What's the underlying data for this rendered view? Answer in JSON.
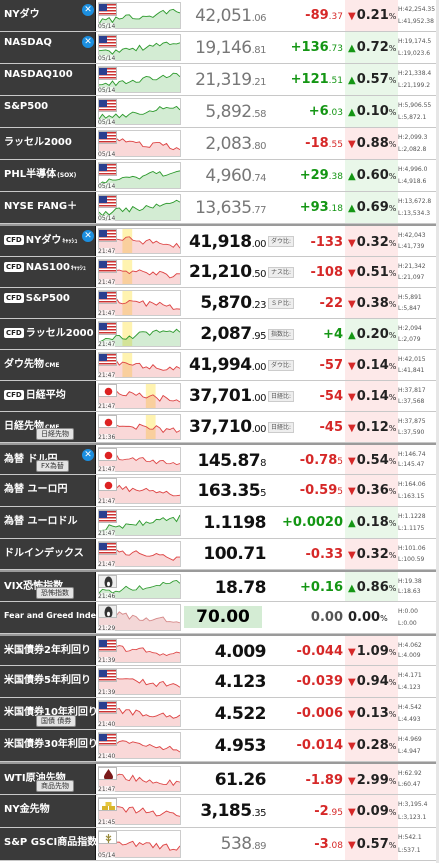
{
  "rows": [
    {
      "name": "NYダウ",
      "cfd": false,
      "x": true,
      "sub": null,
      "icon": "us-flag-icon",
      "ts": "05/14",
      "price_main": "42,051",
      "price_dec": ".06",
      "style": "g",
      "chg_main": "-89",
      "chg_dec": ".37",
      "chg_dir": "dn",
      "pct_main": "0.21",
      "pct_unit": "%",
      "pct_dir": "dn",
      "hi": "H:42,254.35",
      "lo": "L:41,952.38",
      "group": false,
      "chart": "g",
      "label": null
    },
    {
      "name": "NASDAQ",
      "cfd": false,
      "x": true,
      "sub": null,
      "icon": "us-flag-icon",
      "ts": "05/14",
      "price_main": "19,146",
      "price_dec": ".81",
      "style": "g",
      "chg_main": "+136",
      "chg_dec": ".73",
      "chg_dir": "up",
      "pct_main": "0.72",
      "pct_unit": "%",
      "pct_dir": "up",
      "hi": "H:19,174.5",
      "lo": "L:19,023.6",
      "group": false,
      "chart": "g",
      "label": null
    },
    {
      "name": "NASDAQ100",
      "cfd": false,
      "x": false,
      "sub": null,
      "icon": "us-flag-icon",
      "ts": "05/14",
      "price_main": "21,319",
      "price_dec": ".21",
      "style": "g",
      "chg_main": "+121",
      "chg_dec": ".51",
      "chg_dir": "up",
      "pct_main": "0.57",
      "pct_unit": "%",
      "pct_dir": "up",
      "hi": "H:21,338.4",
      "lo": "L:21,199.2",
      "group": false,
      "chart": "g",
      "label": null
    },
    {
      "name": "S&P500",
      "cfd": false,
      "x": false,
      "sub": null,
      "icon": "us-flag-icon",
      "ts": "05/14",
      "price_main": "5,892",
      "price_dec": ".58",
      "style": "g",
      "chg_main": "+6",
      "chg_dec": ".03",
      "chg_dir": "up",
      "pct_main": "0.10",
      "pct_unit": "%",
      "pct_dir": "up",
      "hi": "H:5,906.55",
      "lo": "L:5,872.1",
      "group": false,
      "chart": "g",
      "label": null
    },
    {
      "name": "ラッセル2000",
      "cfd": false,
      "x": false,
      "sub": null,
      "icon": "us-flag-icon",
      "ts": "05/14",
      "price_main": "2,083",
      "price_dec": ".80",
      "style": "g",
      "chg_main": "-18",
      "chg_dec": ".55",
      "chg_dir": "dn",
      "pct_main": "0.88",
      "pct_unit": "%",
      "pct_dir": "dn",
      "hi": "H:2,099.3",
      "lo": "L:2,082.8",
      "group": false,
      "chart": "r",
      "label": null
    },
    {
      "name": "PHL半導体",
      "suffix": "(SOX)",
      "cfd": false,
      "x": false,
      "sub": null,
      "icon": "us-flag-icon",
      "ts": "05/14",
      "price_main": "4,960",
      "price_dec": ".74",
      "style": "g",
      "chg_main": "+29",
      "chg_dec": ".38",
      "chg_dir": "up",
      "pct_main": "0.60",
      "pct_unit": "%",
      "pct_dir": "up",
      "hi": "H:4,996.0",
      "lo": "L:4,918.6",
      "group": false,
      "chart": "g",
      "label": null
    },
    {
      "name": "NYSE FANG＋",
      "cfd": false,
      "x": false,
      "sub": null,
      "icon": "us-flag-icon",
      "ts": "05/14",
      "price_main": "13,635",
      "price_dec": ".77",
      "style": "g",
      "chg_main": "+93",
      "chg_dec": ".18",
      "chg_dir": "up",
      "pct_main": "0.69",
      "pct_unit": "%",
      "pct_dir": "up",
      "hi": "H:13,672.8",
      "lo": "L:13,534.3",
      "group": false,
      "chart": "g",
      "label": null
    },
    {
      "name": "NYダウ",
      "suffix": "ｷｬｯｼｭ",
      "cfd": true,
      "x": true,
      "sub": null,
      "icon": "us-flag-icon",
      "ts": "21:47",
      "price_main": "41,918",
      "price_dec": ".00",
      "style": "b",
      "chg_main": "-133",
      "chg_dec": "",
      "chg_dir": "dn",
      "pct_main": "0.32",
      "pct_unit": "%",
      "pct_dir": "dn",
      "hi": "H:42,043",
      "lo": "L:41,739",
      "group": true,
      "chart": "rb",
      "label": "ダウ比:"
    },
    {
      "name": "NAS100",
      "suffix": "ｷｬｯｼｭ",
      "cfd": true,
      "x": false,
      "sub": null,
      "icon": "us-flag-icon",
      "ts": "21:47",
      "price_main": "21,210",
      "price_dec": ".50",
      "style": "b",
      "chg_main": "-108",
      "chg_dec": "",
      "chg_dir": "dn",
      "pct_main": "0.51",
      "pct_unit": "%",
      "pct_dir": "dn",
      "hi": "H:21,342",
      "lo": "L:21,097",
      "group": false,
      "chart": "rb",
      "label": "ナス比:"
    },
    {
      "name": "S&P500",
      "cfd": true,
      "x": false,
      "sub": null,
      "icon": "us-flag-icon",
      "ts": "21:47",
      "price_main": "5,870",
      "price_dec": ".23",
      "style": "b",
      "chg_main": "-22",
      "chg_dec": "",
      "chg_dir": "dn",
      "pct_main": "0.38",
      "pct_unit": "%",
      "pct_dir": "dn",
      "hi": "H:5,891",
      "lo": "L:5,847",
      "group": false,
      "chart": "rb",
      "label": "ＳＰ比:"
    },
    {
      "name": "ラッセル2000",
      "cfd": true,
      "x": false,
      "sub": null,
      "icon": "us-flag-icon",
      "ts": "21:47",
      "price_main": "2,087",
      "price_dec": ".95",
      "style": "b",
      "chg_main": "+4",
      "chg_dec": "",
      "chg_dir": "up",
      "pct_main": "0.20",
      "pct_unit": "%",
      "pct_dir": "up",
      "hi": "H:2,094",
      "lo": "L:2,079",
      "group": false,
      "chart": "gb",
      "label": "指数比:"
    },
    {
      "name": "ダウ先物",
      "suffix": "CME",
      "cfd": false,
      "x": false,
      "sub": null,
      "icon": "us-flag-icon",
      "ts": "21:47",
      "price_main": "41,994",
      "price_dec": ".00",
      "style": "b",
      "chg_main": "-57",
      "chg_dec": "",
      "chg_dir": "dn",
      "pct_main": "0.14",
      "pct_unit": "%",
      "pct_dir": "dn",
      "hi": "H:42,015",
      "lo": "L:41,841",
      "group": false,
      "chart": "rb",
      "label": "ダウ比:"
    },
    {
      "name": "日経平均",
      "cfd": true,
      "x": false,
      "sub": null,
      "icon": "jp-flag-icon",
      "ts": "21:47",
      "price_main": "37,701",
      "price_dec": ".00",
      "style": "b",
      "chg_main": "-54",
      "chg_dec": "",
      "chg_dir": "dn",
      "pct_main": "0.14",
      "pct_unit": "%",
      "pct_dir": "dn",
      "hi": "H:37,817",
      "lo": "L:37,568",
      "group": false,
      "chart": "rb2",
      "label": "日経比:"
    },
    {
      "name": "日経先物",
      "suffix": "CME",
      "cfd": false,
      "x": false,
      "sub": "日経先物",
      "icon": "jp-flag-icon",
      "ts": "21:36",
      "price_main": "37,710",
      "price_dec": ".00",
      "style": "b",
      "chg_main": "-45",
      "chg_dec": "",
      "chg_dir": "dn",
      "pct_main": "0.12",
      "pct_unit": "%",
      "pct_dir": "dn",
      "hi": "H:37,875",
      "lo": "L:37,590",
      "group": false,
      "chart": "rb2",
      "label": "日経比:"
    },
    {
      "name": "為替 ドル円",
      "cfd": false,
      "x": true,
      "sub": "FX為替",
      "icon": "jp-flag-icon",
      "ts": "21:47",
      "price_main": "145.87",
      "price_dec": "8",
      "style": "b",
      "chg_main": "-0.78",
      "chg_dec": "5",
      "chg_dir": "dn",
      "pct_main": "0.54",
      "pct_unit": "%",
      "pct_dir": "dn",
      "hi": "H:146.74",
      "lo": "L:145.47",
      "group": true,
      "chart": "r",
      "label": null
    },
    {
      "name": "為替 ユーロ円",
      "cfd": false,
      "x": false,
      "sub": null,
      "icon": "jp-flag-icon",
      "ts": "21:47",
      "price_main": "163.35",
      "price_dec": "5",
      "style": "b",
      "chg_main": "-0.59",
      "chg_dec": "5",
      "chg_dir": "dn",
      "pct_main": "0.36",
      "pct_unit": "%",
      "pct_dir": "dn",
      "hi": "H:164.06",
      "lo": "L:163.15",
      "group": false,
      "chart": "r",
      "label": null
    },
    {
      "name": "為替 ユーロドル",
      "cfd": false,
      "x": false,
      "sub": null,
      "icon": "us-flag-icon",
      "ts": "21:47",
      "price_main": "1.1198",
      "price_dec": "",
      "style": "b",
      "chg_main": "+0.0020",
      "chg_dec": "",
      "chg_dir": "up",
      "pct_main": "0.18",
      "pct_unit": "%",
      "pct_dir": "up",
      "hi": "H:1.1228",
      "lo": "L:1.1175",
      "group": false,
      "chart": "g",
      "label": null
    },
    {
      "name": "ドルインデックス",
      "cfd": false,
      "x": false,
      "sub": null,
      "icon": "us-flag-icon",
      "ts": "21:47",
      "price_main": "100.71",
      "price_dec": "",
      "style": "b",
      "chg_main": "-0.33",
      "chg_dec": "",
      "chg_dir": "dn",
      "pct_main": "0.32",
      "pct_unit": "%",
      "pct_dir": "dn",
      "hi": "H:101.06",
      "lo": "L:100.59",
      "group": false,
      "chart": "r",
      "label": null
    },
    {
      "name": "VIX恐怖指数",
      "cfd": false,
      "x": false,
      "sub": "恐怖指数",
      "icon": "scream-icon",
      "ts": "21:46",
      "price_main": "18.78",
      "price_dec": "",
      "style": "b",
      "chg_main": "+0.16",
      "chg_dec": "",
      "chg_dir": "up",
      "pct_main": "0.86",
      "pct_unit": "%",
      "pct_dir": "up",
      "hi": "H:19.38",
      "lo": "L:18.63",
      "group": true,
      "chart": "g",
      "label": null
    },
    {
      "name": "Fear and Greed Index",
      "cfd": false,
      "x": false,
      "sub": null,
      "icon": "scream-icon",
      "ts": "21:29",
      "price_main": "70.00",
      "price_dec": "",
      "style": "box",
      "chg_main": "0.00",
      "chg_dec": "",
      "chg_dir": "zr",
      "pct_main": "0.00",
      "pct_unit": "%",
      "pct_dir": "zr",
      "hi": "H:0.00",
      "lo": "L:0.00",
      "group": false,
      "chart": "fg",
      "label": null
    },
    {
      "name": "米国債券2年利回り",
      "cfd": false,
      "x": false,
      "sub": null,
      "icon": "us-flag-icon",
      "ts": "21:39",
      "price_main": "4.009",
      "price_dec": "",
      "style": "b",
      "chg_main": "-0.044",
      "chg_dec": "",
      "chg_dir": "dn",
      "pct_main": "1.09",
      "pct_unit": "%",
      "pct_dir": "dn",
      "hi": "H:4.062",
      "lo": "L:4.009",
      "group": true,
      "chart": "r",
      "label": null
    },
    {
      "name": "米国債券5年利回り",
      "cfd": false,
      "x": false,
      "sub": null,
      "icon": "us-flag-icon",
      "ts": "21:39",
      "price_main": "4.123",
      "price_dec": "",
      "style": "b",
      "chg_main": "-0.039",
      "chg_dec": "",
      "chg_dir": "dn",
      "pct_main": "0.94",
      "pct_unit": "%",
      "pct_dir": "dn",
      "hi": "H:4.171",
      "lo": "L:4.123",
      "group": false,
      "chart": "r",
      "label": null
    },
    {
      "name": "米国債券10年利回り",
      "cfd": false,
      "x": false,
      "sub": "国債 債券",
      "icon": "us-flag-icon",
      "ts": "21:40",
      "price_main": "4.522",
      "price_dec": "",
      "style": "b",
      "chg_main": "-0.006",
      "chg_dec": "",
      "chg_dir": "dn",
      "pct_main": "0.13",
      "pct_unit": "%",
      "pct_dir": "dn",
      "hi": "H:4.542",
      "lo": "L:4.493",
      "group": false,
      "chart": "r",
      "label": null
    },
    {
      "name": "米国債券30年利回り",
      "cfd": false,
      "x": false,
      "sub": null,
      "icon": "us-flag-icon",
      "ts": "21:40",
      "price_main": "4.953",
      "price_dec": "",
      "style": "b",
      "chg_main": "-0.014",
      "chg_dec": "",
      "chg_dir": "dn",
      "pct_main": "0.28",
      "pct_unit": "%",
      "pct_dir": "dn",
      "hi": "H:4.969",
      "lo": "L:4.947",
      "group": false,
      "chart": "r",
      "label": null
    },
    {
      "name": "WTI原油先物",
      "cfd": false,
      "x": false,
      "sub": "商品先物",
      "icon": "oil-drop-icon",
      "ts": "21:47",
      "price_main": "61.26",
      "price_dec": "",
      "style": "b",
      "chg_main": "-1.89",
      "chg_dec": "",
      "chg_dir": "dn",
      "pct_main": "2.99",
      "pct_unit": "%",
      "pct_dir": "dn",
      "hi": "H:62.92",
      "lo": "L:60.47",
      "group": true,
      "chart": "r",
      "label": null
    },
    {
      "name": "NY金先物",
      "cfd": false,
      "x": false,
      "sub": null,
      "icon": "gold-bars-icon",
      "ts": "21:45",
      "price_main": "3,185",
      "price_dec": ".35",
      "style": "b",
      "chg_main": "-2",
      "chg_dec": ".95",
      "chg_dir": "dn",
      "pct_main": "0.09",
      "pct_unit": "%",
      "pct_dir": "dn",
      "hi": "H:3,195.4",
      "lo": "L:3,123.1",
      "group": false,
      "chart": "r",
      "label": null
    },
    {
      "name": "S&P GSCI商品指数",
      "cfd": false,
      "x": false,
      "sub": null,
      "icon": "wheat-icon",
      "ts": "05/14",
      "price_main": "538",
      "price_dec": ".89",
      "style": "g",
      "chg_main": "-3",
      "chg_dec": ".08",
      "chg_dir": "dn",
      "pct_main": "0.57",
      "pct_unit": "%",
      "pct_dir": "dn",
      "hi": "H:542.1",
      "lo": "L:537.1",
      "group": false,
      "chart": "r",
      "label": null
    }
  ]
}
